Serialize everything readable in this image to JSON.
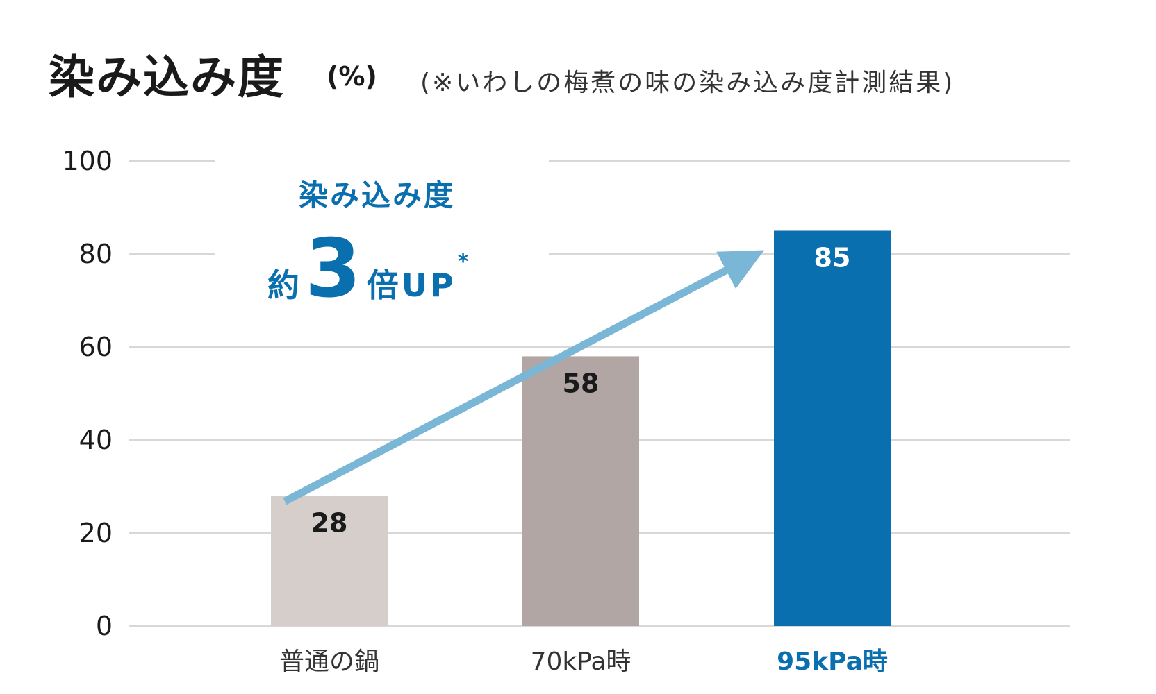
{
  "title": {
    "main": "染み込み度",
    "unit": "(%)",
    "note": "(※いわしの梅煮の味の染み込み度計測結果)"
  },
  "callout": {
    "line1": "染み込み度",
    "prefix": "約",
    "number": "3",
    "suffix": "倍UP",
    "asterisk": "*"
  },
  "colors": {
    "highlight": "#0a6fae",
    "arrow": "#7ab6d6",
    "grid": "#cccccc",
    "axis_text": "#1a1a1a"
  },
  "chart_data": {
    "type": "bar",
    "categories": [
      "普通の鍋",
      "70kPa時",
      "95kPa時"
    ],
    "values": [
      28,
      58,
      85
    ],
    "bar_colors": [
      "#d5cecb",
      "#b1a6a3",
      "#0a6fae"
    ],
    "label_colors": [
      "#1a1a1a",
      "#1a1a1a",
      "#ffffff"
    ],
    "category_label_colors": [
      "#333333",
      "#333333",
      "#0a6fae"
    ],
    "category_label_bold": [
      false,
      false,
      true
    ],
    "ylim": [
      0,
      100
    ],
    "yticks": [
      0,
      20,
      40,
      60,
      80,
      100
    ],
    "grid": true,
    "trend_arrow": true
  }
}
